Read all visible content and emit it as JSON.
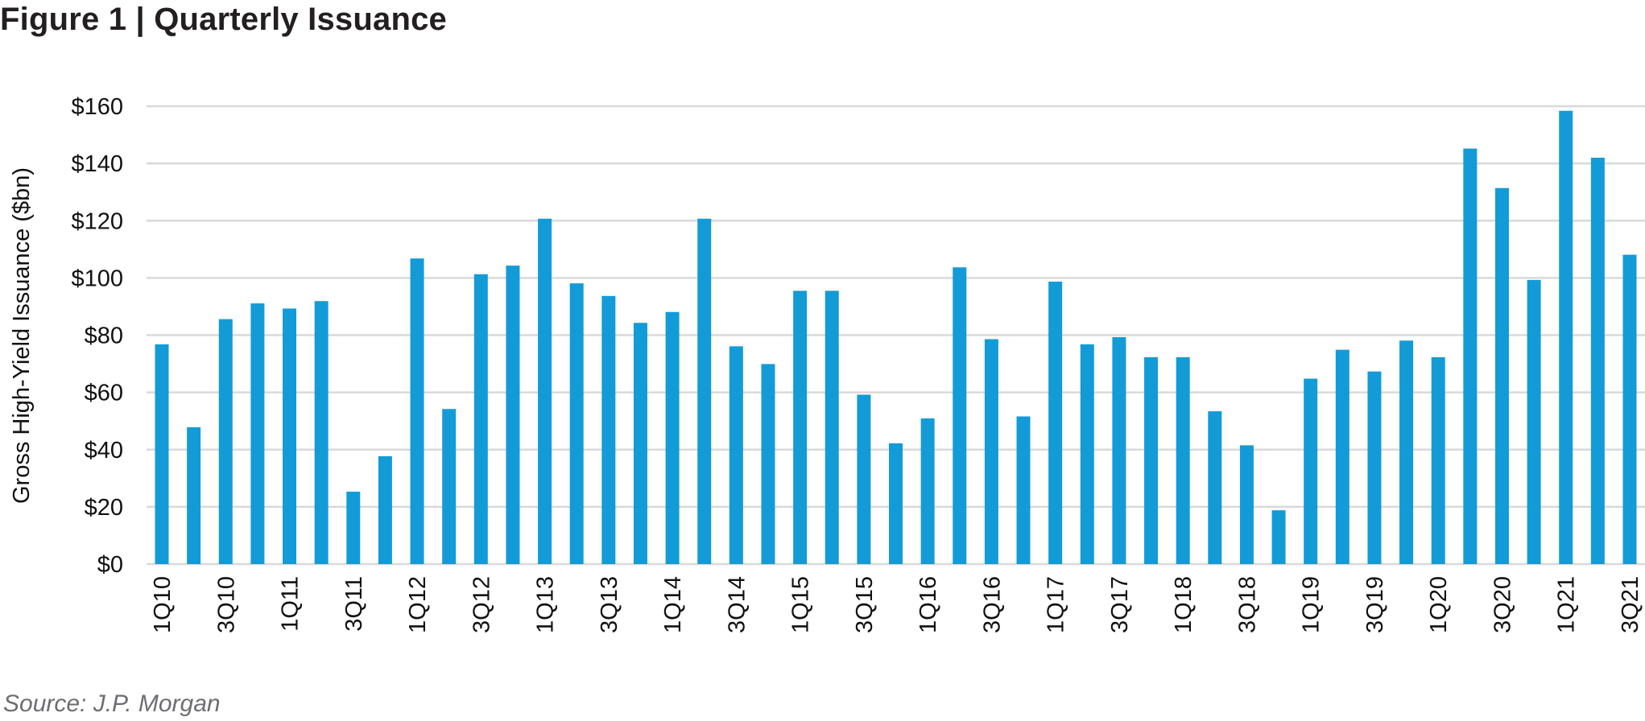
{
  "chart_data": {
    "type": "bar",
    "title": "Figure 1 | Quarterly Issuance",
    "xlabel": "",
    "ylabel": "Gross High-Yield Issuance ($bn)",
    "ylim": [
      0,
      160
    ],
    "yticks": [
      0,
      20,
      40,
      60,
      80,
      100,
      120,
      140,
      160
    ],
    "ytick_labels": [
      "$0",
      "$20",
      "$40",
      "$60",
      "$80",
      "$100",
      "$120",
      "$140",
      "$160"
    ],
    "grid": true,
    "bar_color": "#139bd7",
    "categories": [
      "1Q10",
      "2Q10",
      "3Q10",
      "4Q10",
      "1Q11",
      "2Q11",
      "3Q11",
      "4Q11",
      "1Q12",
      "2Q12",
      "3Q12",
      "4Q12",
      "1Q13",
      "2Q13",
      "3Q13",
      "4Q13",
      "1Q14",
      "2Q14",
      "3Q14",
      "4Q14",
      "1Q15",
      "2Q15",
      "3Q15",
      "4Q15",
      "1Q16",
      "2Q16",
      "3Q16",
      "4Q16",
      "1Q17",
      "2Q17",
      "3Q17",
      "4Q17",
      "1Q18",
      "2Q18",
      "3Q18",
      "4Q18",
      "1Q19",
      "2Q19",
      "3Q19",
      "4Q19",
      "1Q20",
      "2Q20",
      "3Q20",
      "4Q20",
      "1Q21",
      "2Q21",
      "3Q21"
    ],
    "values": [
      76.8,
      47.8,
      85.6,
      91.1,
      89.3,
      91.9,
      25.3,
      37.7,
      106.8,
      54.2,
      101.3,
      104.3,
      120.7,
      98.1,
      93.7,
      84.3,
      88.1,
      120.7,
      76.1,
      69.9,
      95.5,
      95.5,
      59.2,
      42.2,
      50.9,
      103.7,
      78.6,
      51.6,
      98.7,
      76.8,
      79.3,
      72.3,
      72.3,
      53.4,
      41.5,
      18.8,
      64.8,
      74.9,
      67.3,
      78.1,
      72.3,
      145.2,
      131.4,
      99.3,
      158.4,
      142.0,
      108.1
    ],
    "xtick_labels": [
      "1Q10",
      "3Q10",
      "1Q11",
      "3Q11",
      "1Q12",
      "3Q12",
      "1Q13",
      "3Q13",
      "1Q14",
      "3Q14",
      "1Q15",
      "3Q15",
      "1Q16",
      "3Q16",
      "1Q17",
      "3Q17",
      "1Q18",
      "3Q18",
      "1Q19",
      "3Q19",
      "1Q20",
      "3Q20",
      "1Q21",
      "3Q21"
    ],
    "source": "Source: J.P. Morgan"
  }
}
